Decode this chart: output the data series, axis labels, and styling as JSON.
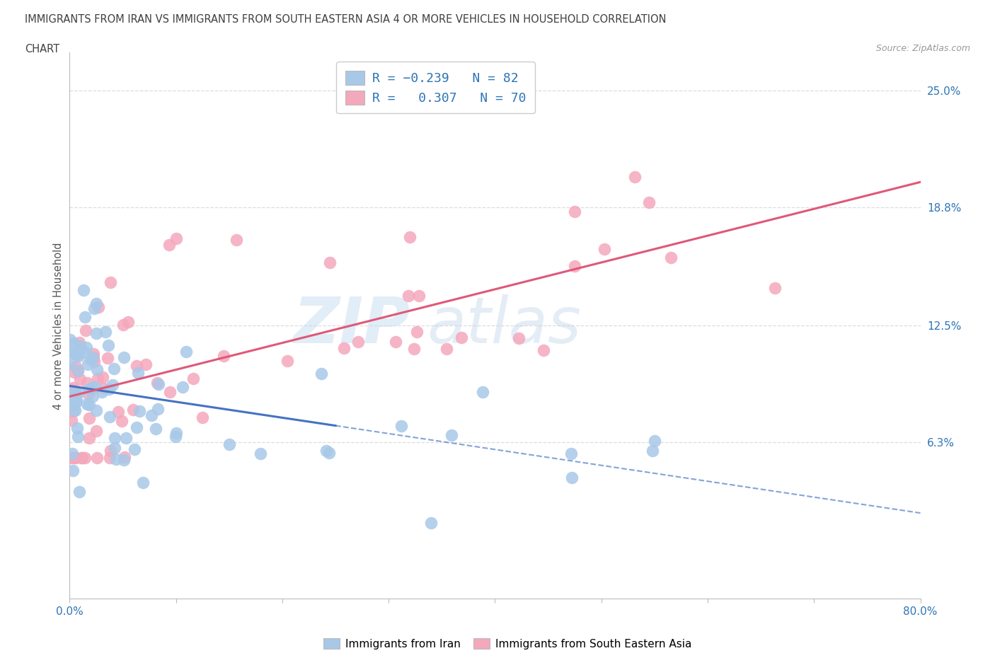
{
  "title_line1": "IMMIGRANTS FROM IRAN VS IMMIGRANTS FROM SOUTH EASTERN ASIA 4 OR MORE VEHICLES IN HOUSEHOLD CORRELATION",
  "title_line2": "CHART",
  "source": "Source: ZipAtlas.com",
  "ylabel": "4 or more Vehicles in Household",
  "xlim": [
    0.0,
    80.0
  ],
  "ylim": [
    -2.0,
    27.0
  ],
  "ytick_values": [
    6.3,
    12.5,
    18.8,
    25.0
  ],
  "iran_color": "#a8c8e8",
  "sea_color": "#f4a8bc",
  "iran_line_color": "#4472c4",
  "sea_line_color": "#e05878",
  "iran_R": -0.239,
  "iran_N": 82,
  "sea_R": 0.307,
  "sea_N": 70,
  "text_color": "#2e75b6",
  "title_color": "#404040",
  "source_color": "#999999",
  "grid_color": "#dddddd",
  "spine_color": "#bbbbbb"
}
